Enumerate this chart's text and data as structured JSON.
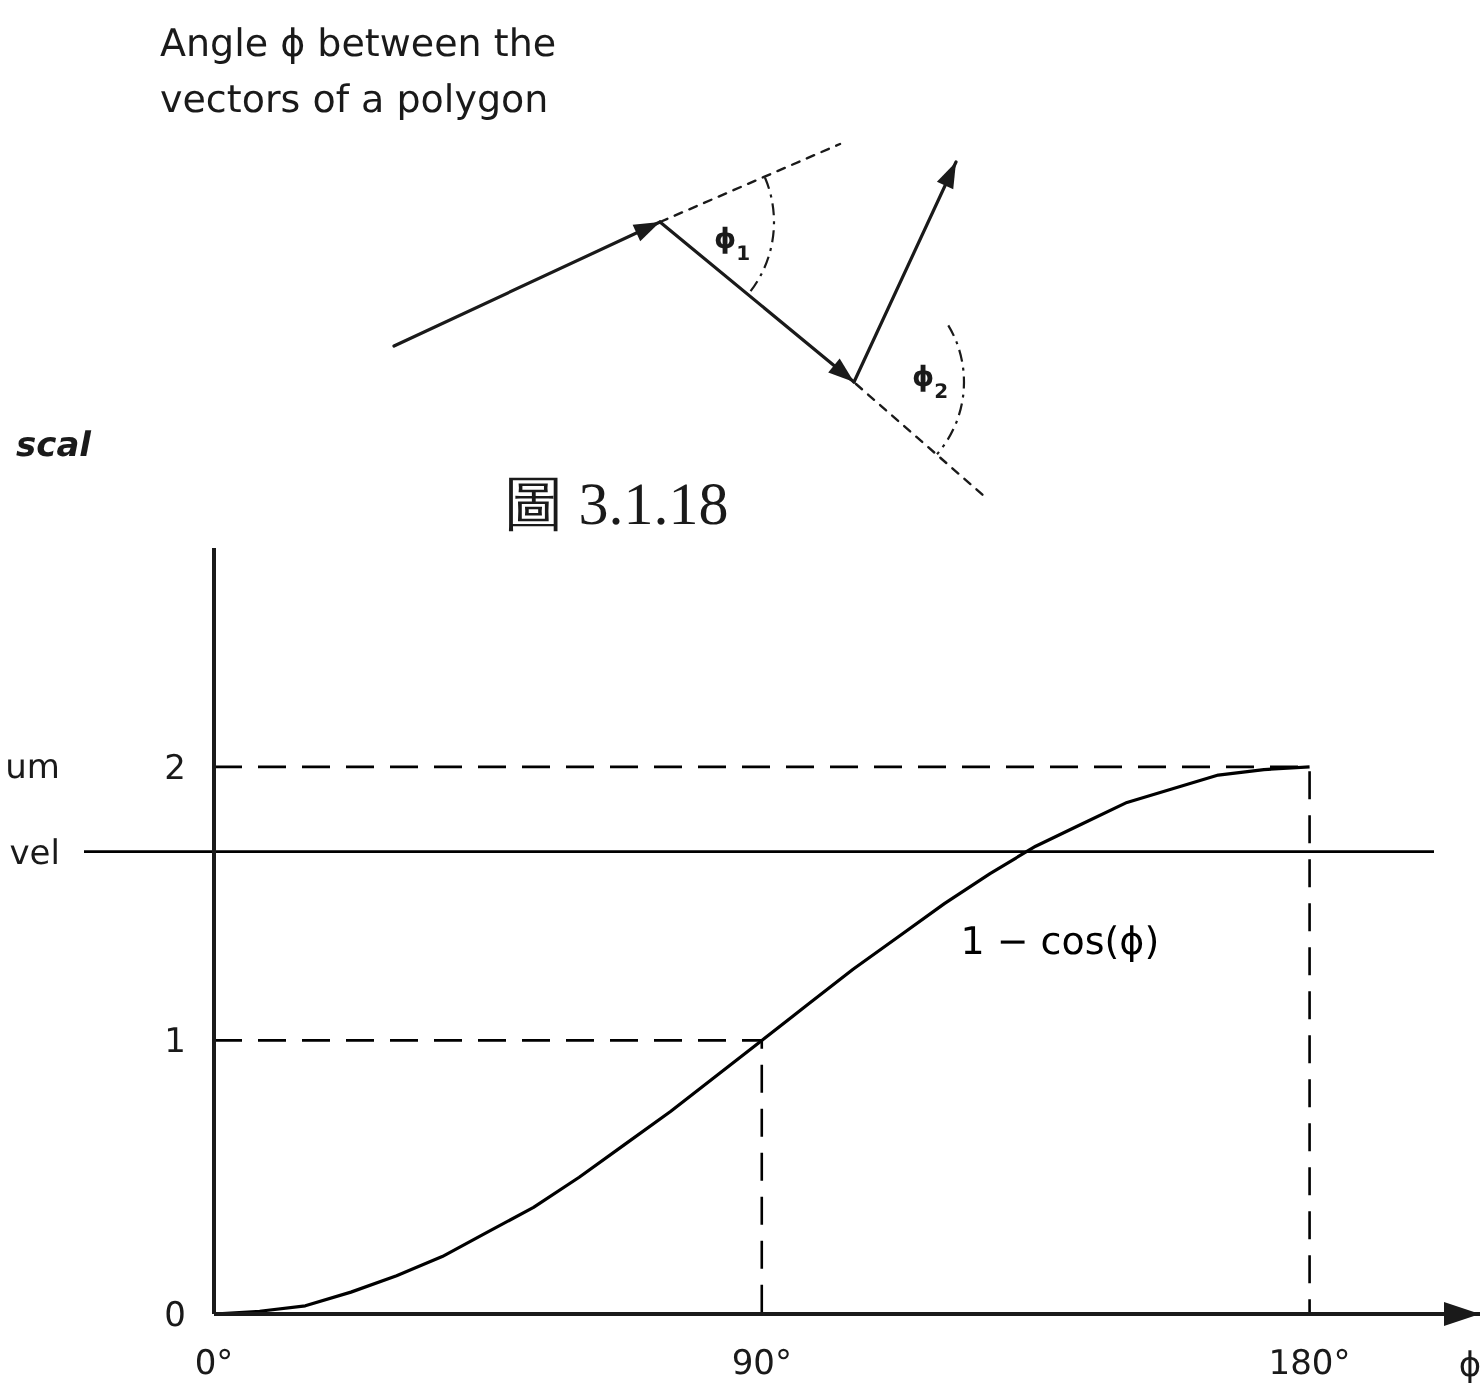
{
  "chart_data": {
    "type": "line",
    "title": "圖 3.1.18",
    "xlabel": "ϕ",
    "annotations": [
      "Angle ϕ between the vectors of a polygon",
      "ϕ$_{1}$",
      "ϕ$_{2}$",
      "scal",
      "um"
    ],
    "series": [
      {
        "name": "1 − cos(ϕ)",
        "color": "#000000",
        "x": [
          0,
          7.5,
          15,
          22.5,
          30,
          37.5,
          45,
          52.5,
          60,
          67.5,
          75,
          82.5,
          90,
          97.5,
          105,
          112.5,
          120,
          127.5,
          135,
          142.5,
          150,
          157.5,
          165,
          172.5,
          180
        ],
        "values": [
          0,
          0.01,
          0.03,
          0.08,
          0.14,
          0.21,
          0.3,
          0.39,
          0.5,
          0.62,
          0.74,
          0.87,
          1,
          1.13,
          1.26,
          1.38,
          1.5,
          1.61,
          1.71,
          1.79,
          1.87,
          1.92,
          1.97,
          1.99,
          2
        ]
      },
      {
        "type": "line",
        "line_style": "dashed",
        "color": "#000000",
        "x": [
          0,
          90,
          90
        ],
        "values": [
          1,
          1,
          0
        ]
      },
      {
        "type": "line",
        "line_style": "dashed",
        "color": "#000000",
        "x": [
          0,
          180,
          180
        ],
        "values": [
          2,
          2,
          0
        ]
      }
    ],
    "xlim": [
      0,
      208
    ],
    "ylim": [
      0,
      2.8
    ],
    "xticks": [
      {
        "value": 0,
        "label": "0°"
      },
      {
        "value": 90,
        "label": "90°"
      },
      {
        "value": 180,
        "label": "180°"
      }
    ],
    "yticks": [
      0,
      1,
      2
    ],
    "ref_lines": [
      {
        "axis": "y",
        "value": 1.69,
        "label": "vel",
        "color": "#000000",
        "line_style": "solid"
      }
    ]
  }
}
